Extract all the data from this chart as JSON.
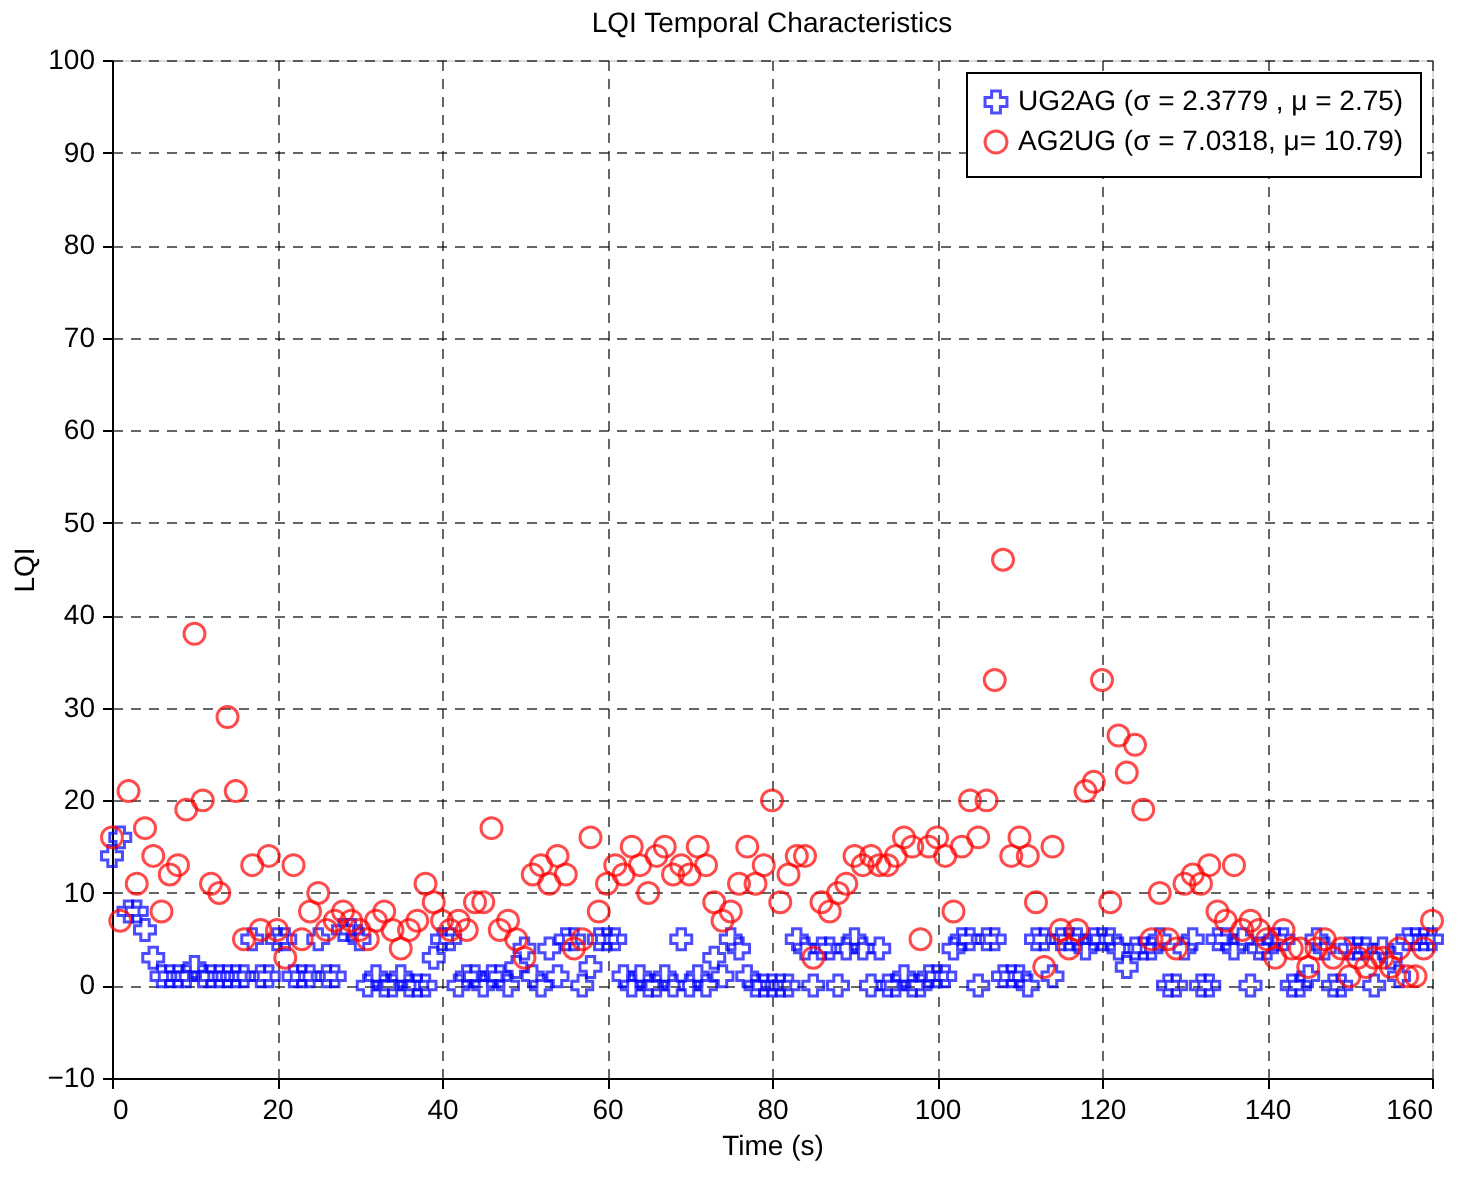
{
  "chart_data": {
    "type": "scatter",
    "title": "LQI Temporal Characteristics",
    "xlabel": "Time (s)",
    "ylabel": "LQI",
    "xlim": [
      0,
      160
    ],
    "xticks": [
      0,
      20,
      40,
      60,
      80,
      100,
      120,
      140,
      160
    ],
    "ylim": [
      -10,
      100
    ],
    "yticks": [
      -10,
      0,
      10,
      20,
      30,
      40,
      50,
      60,
      70,
      80,
      90,
      100
    ],
    "grid": true,
    "legend": "top right",
    "series": [
      {
        "name": "UG2AG (σ = 2.3779 , μ = 2.75)",
        "color": "#0000ff",
        "marker": "cross",
        "x": [
          0,
          1,
          2,
          3,
          4,
          5,
          6,
          7,
          8,
          9,
          10,
          11,
          12,
          13,
          14,
          15,
          16,
          17,
          18,
          19,
          20,
          21,
          22,
          23,
          24,
          25,
          26,
          27,
          28,
          29,
          30,
          31,
          32,
          33,
          34,
          35,
          36,
          37,
          38,
          39,
          40,
          41,
          42,
          43,
          44,
          45,
          46,
          47,
          48,
          49,
          50,
          51,
          52,
          53,
          54,
          55,
          56,
          57,
          58,
          59,
          60,
          61,
          62,
          63,
          64,
          65,
          66,
          67,
          68,
          69,
          70,
          71,
          72,
          73,
          74,
          75,
          76,
          77,
          78,
          79,
          80,
          81,
          82,
          83,
          84,
          85,
          86,
          87,
          88,
          89,
          90,
          91,
          92,
          93,
          94,
          95,
          96,
          97,
          98,
          99,
          100,
          101,
          102,
          103,
          104,
          105,
          106,
          107,
          108,
          109,
          110,
          111,
          112,
          113,
          114,
          115,
          116,
          117,
          118,
          119,
          120,
          121,
          122,
          123,
          124,
          125,
          126,
          127,
          128,
          129,
          130,
          131,
          132,
          133,
          134,
          135,
          136,
          137,
          138,
          139,
          140,
          141,
          142,
          143,
          144,
          145,
          146,
          147,
          148,
          149,
          150,
          151,
          152,
          153,
          154,
          155,
          156,
          157,
          158,
          159,
          160
        ],
        "values": [
          14,
          16,
          8,
          8,
          6,
          3,
          1,
          1,
          1,
          1,
          2,
          1,
          1,
          1,
          1,
          1,
          1,
          5,
          1,
          1,
          5,
          5,
          1,
          1,
          1,
          5,
          1,
          1,
          6,
          6,
          5,
          0,
          1,
          0,
          0,
          1,
          0,
          0,
          0,
          3,
          5,
          5,
          0,
          1,
          1,
          0,
          1,
          1,
          0,
          2,
          4,
          1,
          0,
          4,
          1,
          5,
          5,
          0,
          2,
          5,
          5,
          5,
          1,
          0,
          1,
          0,
          0,
          1,
          0,
          5,
          0,
          1,
          0,
          3,
          1,
          5,
          4,
          1,
          0,
          0,
          0,
          0,
          0,
          5,
          4,
          0,
          4,
          4,
          0,
          4,
          5,
          4,
          0,
          4,
          0,
          0,
          1,
          0,
          0,
          1,
          1,
          1,
          4,
          5,
          5,
          0,
          5,
          5,
          1,
          1,
          1,
          0,
          5,
          5,
          1,
          5,
          5,
          5,
          4,
          5,
          5,
          5,
          4,
          2,
          4,
          4,
          4,
          5,
          0,
          0,
          4,
          5,
          0,
          0,
          5,
          5,
          4,
          5,
          0,
          4,
          4,
          5,
          5,
          0,
          0,
          1,
          5,
          4,
          0,
          0,
          4,
          4,
          4,
          0,
          4,
          3,
          1,
          5,
          5,
          5,
          5
        ]
      },
      {
        "name": "AG2UG (σ = 7.0318, μ= 10.79)",
        "color": "#ff0000",
        "marker": "circle",
        "x": [
          0,
          1,
          2,
          3,
          4,
          5,
          6,
          7,
          8,
          9,
          10,
          11,
          12,
          13,
          14,
          15,
          16,
          17,
          18,
          19,
          20,
          21,
          22,
          23,
          24,
          25,
          26,
          27,
          28,
          29,
          30,
          31,
          32,
          33,
          34,
          35,
          36,
          37,
          38,
          39,
          40,
          41,
          42,
          43,
          44,
          45,
          46,
          47,
          48,
          49,
          50,
          51,
          52,
          53,
          54,
          55,
          56,
          57,
          58,
          59,
          60,
          61,
          62,
          63,
          64,
          65,
          66,
          67,
          68,
          69,
          70,
          71,
          72,
          73,
          74,
          75,
          76,
          77,
          78,
          79,
          80,
          81,
          82,
          83,
          84,
          85,
          86,
          87,
          88,
          89,
          90,
          91,
          92,
          93,
          94,
          95,
          96,
          97,
          98,
          99,
          100,
          101,
          102,
          103,
          104,
          105,
          106,
          107,
          108,
          109,
          110,
          111,
          112,
          113,
          114,
          115,
          116,
          117,
          118,
          119,
          120,
          121,
          122,
          123,
          124,
          125,
          126,
          127,
          128,
          129,
          130,
          131,
          132,
          133,
          134,
          135,
          136,
          137,
          138,
          139,
          140,
          141,
          142,
          143,
          144,
          145,
          146,
          147,
          148,
          149,
          150,
          151,
          152,
          153,
          154,
          155,
          156,
          157,
          158,
          159,
          160
        ],
        "values": [
          16,
          7,
          21,
          11,
          17,
          14,
          8,
          12,
          13,
          19,
          38,
          20,
          11,
          10,
          29,
          21,
          5,
          13,
          6,
          14,
          6,
          3,
          13,
          5,
          8,
          10,
          6,
          7,
          8,
          7,
          6,
          5,
          7,
          8,
          6,
          4,
          6,
          7,
          11,
          9,
          7,
          6,
          7,
          6,
          9,
          9,
          17,
          6,
          7,
          5,
          3,
          12,
          13,
          11,
          14,
          12,
          4,
          5,
          16,
          8,
          11,
          13,
          12,
          15,
          13,
          10,
          14,
          15,
          12,
          13,
          12,
          15,
          13,
          9,
          7,
          8,
          11,
          15,
          11,
          13,
          20,
          9,
          12,
          14,
          14,
          3,
          9,
          8,
          10,
          11,
          14,
          13,
          14,
          13,
          13,
          14,
          16,
          15,
          5,
          15,
          16,
          14,
          8,
          15,
          20,
          16,
          20,
          33,
          46,
          14,
          16,
          14,
          9,
          2,
          15,
          6,
          4,
          6,
          21,
          22,
          33,
          9,
          27,
          23,
          26,
          19,
          5,
          10,
          5,
          4,
          11,
          12,
          11,
          13,
          8,
          7,
          13,
          6,
          7,
          6,
          5,
          3,
          6,
          4,
          4,
          2,
          4,
          5,
          3,
          4,
          1,
          3,
          2,
          3,
          3,
          2,
          4,
          1,
          1,
          4,
          7
        ]
      }
    ]
  }
}
